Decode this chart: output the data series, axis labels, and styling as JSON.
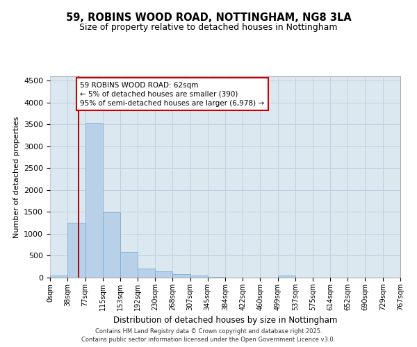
{
  "title": "59, ROBINS WOOD ROAD, NOTTINGHAM, NG8 3LA",
  "subtitle": "Size of property relative to detached houses in Nottingham",
  "xlabel": "Distribution of detached houses by size in Nottingham",
  "ylabel": "Number of detached properties",
  "bar_color": "#b8d0e8",
  "bar_edge_color": "#7aafd4",
  "grid_color": "#c0d0e0",
  "background_color": "#dce8f0",
  "vline_color": "#cc0000",
  "annotation_text": "59 ROBINS WOOD ROAD: 62sqm\n← 5% of detached houses are smaller (390)\n95% of semi-detached houses are larger (6,978) →",
  "annotation_box_color": "#ffffff",
  "annotation_box_edge": "#cc0000",
  "bins": [
    0,
    38,
    77,
    115,
    153,
    192,
    230,
    268,
    307,
    345,
    384,
    422,
    460,
    499,
    537,
    575,
    614,
    652,
    690,
    729,
    767
  ],
  "counts": [
    40,
    1260,
    3530,
    1490,
    590,
    210,
    140,
    80,
    40,
    10,
    0,
    0,
    0,
    40,
    0,
    0,
    0,
    0,
    0,
    0
  ],
  "vline_x": 62,
  "ylim": [
    0,
    4600
  ],
  "yticks": [
    0,
    500,
    1000,
    1500,
    2000,
    2500,
    3000,
    3500,
    4000,
    4500
  ],
  "footnote": "Contains HM Land Registry data © Crown copyright and database right 2025.\nContains public sector information licensed under the Open Government Licence v3.0.",
  "fig_bg": "#ffffff",
  "fig_width": 6.0,
  "fig_height": 5.0,
  "dpi": 100
}
